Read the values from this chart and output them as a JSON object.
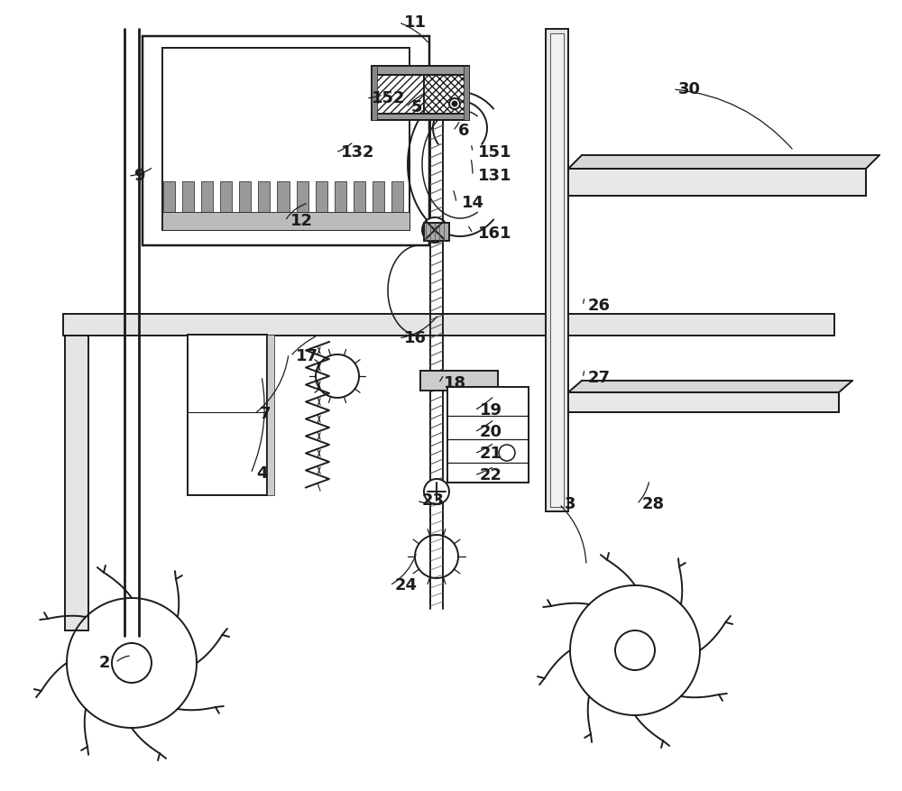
{
  "bg": "#ffffff",
  "lc": "#1c1c1c",
  "lw": 1.4,
  "figsize": [
    10.0,
    8.77
  ],
  "dpi": 100,
  "labels": [
    [
      "2",
      1.32,
      1.42
    ],
    [
      "3",
      6.25,
      3.18
    ],
    [
      "4",
      2.88,
      3.52
    ],
    [
      "5",
      4.6,
      7.58
    ],
    [
      "6",
      5.08,
      7.32
    ],
    [
      "7",
      2.88,
      4.18
    ],
    [
      "9",
      1.48,
      6.82
    ],
    [
      "11",
      4.48,
      8.52
    ],
    [
      "12",
      3.22,
      6.32
    ],
    [
      "14",
      5.12,
      6.52
    ],
    [
      "16",
      4.48,
      5.02
    ],
    [
      "17",
      3.28,
      4.82
    ],
    [
      "18",
      4.92,
      4.52
    ],
    [
      "19",
      5.32,
      4.22
    ],
    [
      "20",
      5.32,
      3.98
    ],
    [
      "21",
      5.32,
      3.74
    ],
    [
      "22",
      5.32,
      3.5
    ],
    [
      "23",
      4.68,
      3.22
    ],
    [
      "24",
      4.38,
      2.28
    ],
    [
      "26",
      6.52,
      5.38
    ],
    [
      "27",
      6.52,
      4.58
    ],
    [
      "28",
      7.12,
      3.18
    ],
    [
      "30",
      7.52,
      7.78
    ],
    [
      "131",
      5.3,
      6.82
    ],
    [
      "132",
      3.78,
      7.08
    ],
    [
      "151",
      5.3,
      7.08
    ],
    [
      "152",
      4.12,
      7.68
    ],
    [
      "161",
      5.3,
      6.18
    ]
  ]
}
